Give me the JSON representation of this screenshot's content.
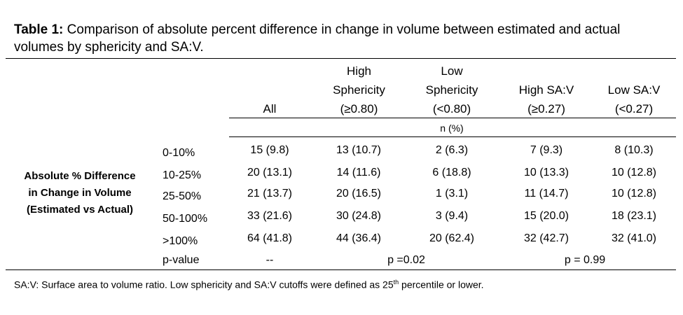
{
  "caption": {
    "label": "Table 1:",
    "text": " Comparison of absolute percent difference in change in volume between estimated and actual volumes by sphericity and SA:V."
  },
  "columns": [
    {
      "lines": [
        "",
        "",
        "All"
      ]
    },
    {
      "lines": [
        "High",
        "Sphericity",
        "(≥0.80)"
      ]
    },
    {
      "lines": [
        "",
        "Low",
        "Sphericity",
        "(<0.80)"
      ]
    },
    {
      "lines": [
        "",
        "High SA:V",
        "(≥0.27)"
      ]
    },
    {
      "lines": [
        "",
        "Low SA:V",
        "(<0.27)"
      ]
    }
  ],
  "unit_label": "n (%)",
  "row_group_label": [
    "Absolute % Difference",
    "in Change in Volume",
    "(Estimated vs Actual)"
  ],
  "rows": [
    {
      "label": "0-10%",
      "values": [
        "15 (9.8)",
        "13 (10.7)",
        "2 (6.3)",
        "7 (9.3)",
        "8 (10.3)"
      ]
    },
    {
      "label": "10-25%",
      "values": [
        "20 (13.1)",
        "14 (11.6)",
        "6 (18.8)",
        "10 (13.3)",
        "10 (12.8)"
      ]
    },
    {
      "label": "25-50%",
      "values": [
        "21 (13.7)",
        "20 (16.5)",
        "1 (3.1)",
        "11 (14.7)",
        "10 (12.8)"
      ]
    },
    {
      "label": "50-100%",
      "values": [
        "33 (21.6)",
        "30 (24.8)",
        "3 (9.4)",
        "15 (20.0)",
        "18 (23.1)"
      ]
    },
    {
      "label": ">100%",
      "values": [
        "64 (41.8)",
        "44 (36.4)",
        "20 (62.4)",
        "32 (42.7)",
        "32 (41.0)"
      ]
    }
  ],
  "pvalue": {
    "label": "p-value",
    "all": "--",
    "sphericity": "p =0.02",
    "sav": "p = 0.99"
  },
  "footnote": {
    "before": "SA:V: Surface area to volume ratio. Low sphericity and SA:V cutoffs were defined as 25",
    "sup": "th",
    "after": " percentile or lower."
  }
}
